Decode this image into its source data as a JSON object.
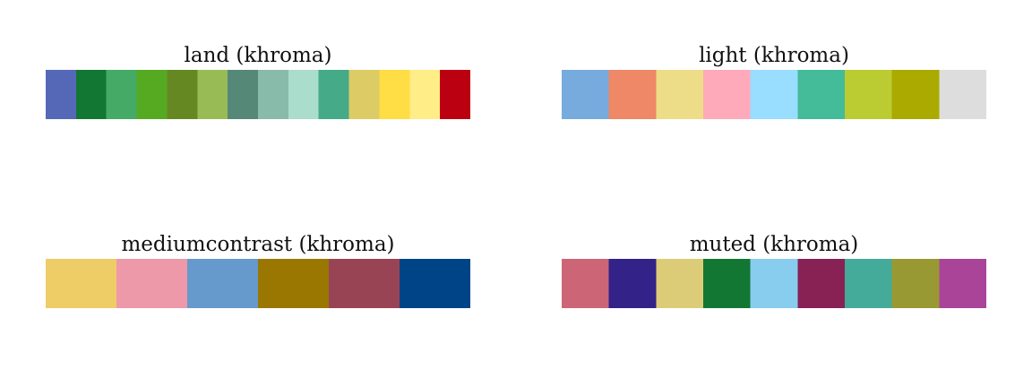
{
  "chart_data": [
    {
      "type": "palette",
      "title": "land (khroma)",
      "colors": [
        "#5568B8",
        "#117733",
        "#44AA66",
        "#55AA22",
        "#668822",
        "#99BB55",
        "#558877",
        "#88BBAA",
        "#AADDCC",
        "#44AA88",
        "#DDCC66",
        "#FFDD44",
        "#FFEE88",
        "#BB0011"
      ]
    },
    {
      "type": "palette",
      "title": "light (khroma)",
      "colors": [
        "#77AADD",
        "#EE8866",
        "#EEDD88",
        "#FFAABB",
        "#99DDFF",
        "#44BB99",
        "#BBCC33",
        "#AAAA00",
        "#DDDDDD"
      ]
    },
    {
      "type": "palette",
      "title": "mediumcontrast (khroma)",
      "colors": [
        "#EECC66",
        "#EE99AA",
        "#6699CC",
        "#997700",
        "#994455",
        "#004488"
      ]
    },
    {
      "type": "palette",
      "title": "muted (khroma)",
      "colors": [
        "#CC6677",
        "#332288",
        "#DDCC77",
        "#117733",
        "#88CCEE",
        "#882255",
        "#44AA99",
        "#999933",
        "#AA4499"
      ]
    }
  ]
}
